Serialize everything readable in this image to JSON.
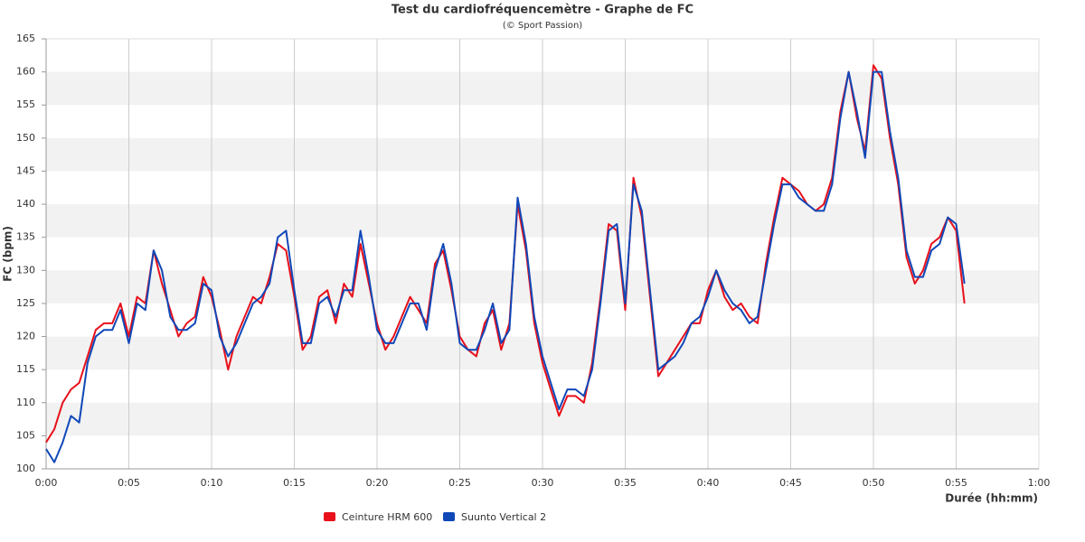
{
  "chart_data": {
    "type": "line",
    "title": "Test du cardiofréquencemètre - Graphe de FC",
    "subtitle": "(© Sport Passion)",
    "x_label": "Durée (hh:mm)",
    "y_label": "FC (bpm)",
    "x": [
      0,
      0.5,
      1,
      1.5,
      2,
      2.5,
      3,
      3.5,
      4,
      4.5,
      5,
      5.5,
      6,
      6.5,
      7,
      7.5,
      8,
      8.5,
      9,
      9.5,
      10,
      10.5,
      11,
      11.5,
      12,
      12.5,
      13,
      13.5,
      14,
      14.5,
      15,
      15.5,
      16,
      16.5,
      17,
      17.5,
      18,
      18.5,
      19,
      19.5,
      20,
      20.5,
      21,
      21.5,
      22,
      22.5,
      23,
      23.5,
      24,
      24.5,
      25,
      25.5,
      26,
      26.5,
      27,
      27.5,
      28,
      28.5,
      29,
      29.5,
      30,
      30.5,
      31,
      31.5,
      32,
      32.5,
      33,
      33.5,
      34,
      34.5,
      35,
      35.5,
      36,
      36.5,
      37,
      37.5,
      38,
      38.5,
      39,
      39.5,
      40,
      40.5,
      41,
      41.5,
      42,
      42.5,
      43,
      43.5,
      44,
      44.5,
      45,
      45.5,
      46,
      46.5,
      47,
      47.5,
      48,
      48.5,
      49,
      49.5,
      50,
      50.5,
      51,
      51.5,
      52,
      52.5,
      53,
      53.5,
      54,
      54.5,
      55,
      55.5
    ],
    "series": [
      {
        "name": "Ceinture HRM 600",
        "color": "#e8101a",
        "values": [
          104,
          106,
          110,
          112,
          113,
          117,
          121,
          122,
          122,
          125,
          120,
          126,
          125,
          133,
          128,
          124,
          120,
          122,
          123,
          129,
          126,
          121,
          115,
          120,
          123,
          126,
          125,
          129,
          134,
          133,
          126,
          118,
          120,
          126,
          127,
          122,
          128,
          126,
          134,
          128,
          122,
          118,
          120,
          123,
          126,
          124,
          122,
          131,
          133,
          127,
          120,
          118,
          117,
          122,
          124,
          118,
          122,
          140,
          133,
          122,
          116,
          112,
          108,
          111,
          111,
          110,
          116,
          126,
          137,
          136,
          124,
          144,
          138,
          126,
          114,
          116,
          118,
          120,
          122,
          122,
          127,
          130,
          126,
          124,
          125,
          123,
          122,
          131,
          138,
          144,
          143,
          142,
          140,
          139,
          140,
          144,
          154,
          160,
          153,
          148,
          161,
          159,
          150,
          143,
          132,
          128,
          130,
          134,
          135,
          138,
          136,
          125
        ]
      },
      {
        "name": "Suunto Vertical 2",
        "color": "#1048b8",
        "values": [
          103,
          101,
          104,
          108,
          107,
          116,
          120,
          121,
          121,
          124,
          119,
          125,
          124,
          133,
          130,
          123,
          121,
          121,
          122,
          128,
          127,
          120,
          117,
          119,
          122,
          125,
          126,
          128,
          135,
          136,
          127,
          119,
          119,
          125,
          126,
          123,
          127,
          127,
          136,
          129,
          121,
          119,
          119,
          122,
          125,
          125,
          121,
          130,
          134,
          128,
          119,
          118,
          118,
          121,
          125,
          119,
          121,
          141,
          134,
          123,
          117,
          113,
          109,
          112,
          112,
          111,
          115,
          125,
          136,
          137,
          125,
          143,
          139,
          127,
          115,
          116,
          117,
          119,
          122,
          123,
          126,
          130,
          127,
          125,
          124,
          122,
          123,
          130,
          137,
          143,
          143,
          141,
          140,
          139,
          139,
          143,
          153,
          160,
          154,
          147,
          160,
          160,
          151,
          144,
          133,
          129,
          129,
          133,
          134,
          138,
          137,
          128
        ]
      }
    ],
    "xlim": [
      0,
      60
    ],
    "xticks": [
      {
        "value": 0,
        "label": "0:00"
      },
      {
        "value": 5,
        "label": "0:05"
      },
      {
        "value": 10,
        "label": "0:10"
      },
      {
        "value": 15,
        "label": "0:15"
      },
      {
        "value": 20,
        "label": "0:20"
      },
      {
        "value": 25,
        "label": "0:25"
      },
      {
        "value": 30,
        "label": "0:30"
      },
      {
        "value": 35,
        "label": "0:35"
      },
      {
        "value": 40,
        "label": "0:40"
      },
      {
        "value": 45,
        "label": "0:45"
      },
      {
        "value": 50,
        "label": "0:50"
      },
      {
        "value": 55,
        "label": "0:55"
      },
      {
        "value": 60,
        "label": "1:00"
      }
    ],
    "ylim": [
      100,
      165
    ],
    "yticks": [
      100,
      105,
      110,
      115,
      120,
      125,
      130,
      135,
      140,
      145,
      150,
      155,
      160,
      165
    ],
    "grid": true,
    "legend": "bottom"
  }
}
